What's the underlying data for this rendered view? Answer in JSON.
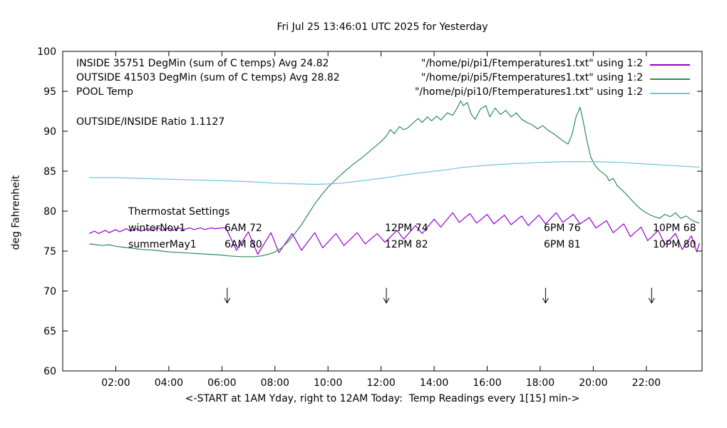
{
  "chart_data": {
    "type": "line",
    "title": "Fri Jul 25 13:46:01 UTC 2025 for Yesterday",
    "xlabel": "<-START at 1AM Yday, right to 12AM Today:  Temp Readings every 1[15] min->",
    "ylabel": "deg Fahrenheit",
    "xlim": [
      0,
      24.1
    ],
    "ylim": [
      60,
      100
    ],
    "grid": false,
    "legend_position": "top-inside",
    "xticks": {
      "values": [
        2,
        4,
        6,
        8,
        10,
        12,
        14,
        16,
        18,
        20,
        22
      ],
      "labels": [
        "02:00",
        "04:00",
        "06:00",
        "08:00",
        "10:00",
        "12:00",
        "14:00",
        "16:00",
        "18:00",
        "20:00",
        "22:00"
      ]
    },
    "yticks": [
      60,
      65,
      70,
      75,
      80,
      85,
      90,
      95,
      100
    ],
    "annotations": {
      "ratio": "OUTSIDE/INSIDE Ratio 1.1127"
    },
    "arrows": {
      "x_hours": [
        6.2,
        12.2,
        18.2,
        22.2
      ],
      "y_from": 70.4,
      "y_to": 68.5
    },
    "thermostat": {
      "heading": "Thermostat Settings",
      "rows": [
        {
          "label": "winterNov1",
          "values": [
            "6AM 72",
            "12PM 74",
            "6PM 76",
            "10PM 68"
          ]
        },
        {
          "label": "summerMay1",
          "values": [
            "6AM 80",
            "12PM 82",
            "6PM 81",
            "10PM 80"
          ]
        }
      ]
    },
    "series": [
      {
        "id": "inside",
        "legend_label": "INSIDE 35751 DegMin (sum of C temps) Avg 24.82",
        "file_label": "\"/home/pi/pi1/Ftemperatures1.txt\" using 1:2",
        "color": "#9400d3",
        "points": [
          [
            1,
            77.2
          ],
          [
            1.2,
            77.5
          ],
          [
            1.35,
            77.2
          ],
          [
            1.6,
            77.6
          ],
          [
            1.75,
            77.3
          ],
          [
            2,
            77.7
          ],
          [
            2.15,
            77.4
          ],
          [
            2.4,
            77.8
          ],
          [
            2.55,
            77.5
          ],
          [
            2.8,
            77.8
          ],
          [
            2.95,
            77.5
          ],
          [
            3.2,
            77.8
          ],
          [
            3.35,
            77.6
          ],
          [
            3.6,
            77.9
          ],
          [
            3.75,
            77.6
          ],
          [
            4,
            77.9
          ],
          [
            4.15,
            77.6
          ],
          [
            4.4,
            77.9
          ],
          [
            4.55,
            77.7
          ],
          [
            4.8,
            77.9
          ],
          [
            4.95,
            77.7
          ],
          [
            5.2,
            77.9
          ],
          [
            5.35,
            77.7
          ],
          [
            5.6,
            77.9
          ],
          [
            5.75,
            77.8
          ],
          [
            6,
            77.9
          ],
          [
            6.15,
            77.9
          ],
          [
            6.55,
            75.1
          ],
          [
            7,
            77.4
          ],
          [
            7.35,
            74.6
          ],
          [
            7.85,
            77.3
          ],
          [
            8.15,
            74.8
          ],
          [
            8.65,
            77.2
          ],
          [
            9,
            75.1
          ],
          [
            9.5,
            77.3
          ],
          [
            9.8,
            75.4
          ],
          [
            10.3,
            77.2
          ],
          [
            10.6,
            75.7
          ],
          [
            11.1,
            77.3
          ],
          [
            11.4,
            75.9
          ],
          [
            11.85,
            77.2
          ],
          [
            12.15,
            76.1
          ],
          [
            12.6,
            77.6
          ],
          [
            12.85,
            76.5
          ],
          [
            13.3,
            78.2
          ],
          [
            13.55,
            77.2
          ],
          [
            14,
            79
          ],
          [
            14.25,
            78
          ],
          [
            14.7,
            79.8
          ],
          [
            14.95,
            78.6
          ],
          [
            15.35,
            79.7
          ],
          [
            15.6,
            78.5
          ],
          [
            16,
            79.6
          ],
          [
            16.25,
            78.4
          ],
          [
            16.65,
            79.5
          ],
          [
            16.9,
            78.3
          ],
          [
            17.3,
            79.4
          ],
          [
            17.55,
            78.2
          ],
          [
            17.95,
            79.5
          ],
          [
            18.2,
            78.4
          ],
          [
            18.6,
            79.8
          ],
          [
            18.85,
            78.6
          ],
          [
            19.25,
            79.6
          ],
          [
            19.5,
            78.4
          ],
          [
            19.85,
            79.2
          ],
          [
            20.1,
            77.9
          ],
          [
            20.5,
            78.8
          ],
          [
            20.75,
            77.3
          ],
          [
            21.15,
            78.4
          ],
          [
            21.4,
            76.8
          ],
          [
            21.8,
            78
          ],
          [
            22.05,
            76.3
          ],
          [
            22.45,
            77.6
          ],
          [
            22.7,
            75.8
          ],
          [
            23.1,
            77.2
          ],
          [
            23.35,
            75.2
          ],
          [
            23.7,
            76.9
          ],
          [
            23.9,
            74.9
          ],
          [
            24,
            76
          ]
        ]
      },
      {
        "id": "outside",
        "legend_label": "OUTSIDE 41503 DegMin (sum of C temps) Avg 28.82",
        "file_label": "\"/home/pi/pi5/Ftemperatures1.txt\" using 1:2",
        "color": "#2e8b57",
        "points": [
          [
            1,
            75.9
          ],
          [
            1.25,
            75.8
          ],
          [
            1.5,
            75.7
          ],
          [
            1.75,
            75.8
          ],
          [
            2,
            75.6
          ],
          [
            2.25,
            75.5
          ],
          [
            2.5,
            75.4
          ],
          [
            2.75,
            75.3
          ],
          [
            3,
            75.2
          ],
          [
            3.25,
            75.15
          ],
          [
            3.5,
            75.1
          ],
          [
            3.75,
            75
          ],
          [
            4,
            74.9
          ],
          [
            4.25,
            74.85
          ],
          [
            4.5,
            74.8
          ],
          [
            4.75,
            74.75
          ],
          [
            5,
            74.7
          ],
          [
            5.25,
            74.65
          ],
          [
            5.5,
            74.6
          ],
          [
            5.75,
            74.55
          ],
          [
            6,
            74.5
          ],
          [
            6.25,
            74.4
          ],
          [
            6.5,
            74.35
          ],
          [
            6.75,
            74.3
          ],
          [
            7,
            74.3
          ],
          [
            7.25,
            74.3
          ],
          [
            7.5,
            74.4
          ],
          [
            7.75,
            74.6
          ],
          [
            8,
            74.9
          ],
          [
            8.25,
            75.4
          ],
          [
            8.5,
            76.2
          ],
          [
            8.75,
            77.2
          ],
          [
            9,
            78.3
          ],
          [
            9.25,
            79.6
          ],
          [
            9.5,
            80.9
          ],
          [
            9.75,
            82
          ],
          [
            10,
            83
          ],
          [
            10.25,
            83.8
          ],
          [
            10.5,
            84.6
          ],
          [
            10.75,
            85.3
          ],
          [
            11,
            86
          ],
          [
            11.25,
            86.6
          ],
          [
            11.5,
            87.3
          ],
          [
            11.75,
            88
          ],
          [
            12,
            88.7
          ],
          [
            12.2,
            89.4
          ],
          [
            12.35,
            90.2
          ],
          [
            12.5,
            89.7
          ],
          [
            12.7,
            90.6
          ],
          [
            12.85,
            90.2
          ],
          [
            13,
            90.4
          ],
          [
            13.2,
            91
          ],
          [
            13.4,
            91.6
          ],
          [
            13.55,
            91.1
          ],
          [
            13.75,
            91.8
          ],
          [
            13.9,
            91.3
          ],
          [
            14.1,
            91.9
          ],
          [
            14.25,
            91.4
          ],
          [
            14.5,
            92.3
          ],
          [
            14.7,
            92
          ],
          [
            14.85,
            92.8
          ],
          [
            15,
            93.8
          ],
          [
            15.1,
            93.2
          ],
          [
            15.25,
            93.6
          ],
          [
            15.4,
            92.1
          ],
          [
            15.55,
            91.5
          ],
          [
            15.75,
            92.8
          ],
          [
            15.95,
            93.2
          ],
          [
            16.1,
            91.8
          ],
          [
            16.3,
            92.9
          ],
          [
            16.5,
            92.1
          ],
          [
            16.7,
            92.6
          ],
          [
            16.9,
            91.8
          ],
          [
            17.1,
            92.3
          ],
          [
            17.3,
            91.5
          ],
          [
            17.5,
            91.1
          ],
          [
            17.7,
            90.8
          ],
          [
            17.9,
            90.3
          ],
          [
            18.1,
            90.7
          ],
          [
            18.3,
            90.1
          ],
          [
            18.5,
            89.7
          ],
          [
            18.7,
            89.2
          ],
          [
            18.9,
            88.7
          ],
          [
            19.05,
            88.4
          ],
          [
            19.2,
            89.6
          ],
          [
            19.35,
            91.8
          ],
          [
            19.5,
            93
          ],
          [
            19.6,
            91.6
          ],
          [
            19.75,
            89
          ],
          [
            19.9,
            86.8
          ],
          [
            20.05,
            85.8
          ],
          [
            20.2,
            85.2
          ],
          [
            20.35,
            84.8
          ],
          [
            20.5,
            84.4
          ],
          [
            20.6,
            83.8
          ],
          [
            20.75,
            84.1
          ],
          [
            20.9,
            83.2
          ],
          [
            21.1,
            82.6
          ],
          [
            21.3,
            81.9
          ],
          [
            21.5,
            81.2
          ],
          [
            21.7,
            80.5
          ],
          [
            21.9,
            80
          ],
          [
            22.1,
            79.6
          ],
          [
            22.3,
            79.3
          ],
          [
            22.5,
            79.1
          ],
          [
            22.7,
            79.6
          ],
          [
            22.9,
            79.3
          ],
          [
            23.1,
            79.8
          ],
          [
            23.3,
            79.1
          ],
          [
            23.5,
            79.4
          ],
          [
            23.7,
            78.9
          ],
          [
            23.9,
            78.6
          ],
          [
            24,
            78.5
          ]
        ]
      },
      {
        "id": "pool",
        "legend_label": "POOL Temp",
        "file_label": "\"/home/pi/pi10/Ftemperatures1.txt\" using 1:2",
        "color": "#6fc3de",
        "points": [
          [
            1,
            84.2
          ],
          [
            2,
            84.2
          ],
          [
            3,
            84.1
          ],
          [
            4,
            84
          ],
          [
            5,
            83.9
          ],
          [
            6,
            83.8
          ],
          [
            7,
            83.7
          ],
          [
            8,
            83.5
          ],
          [
            8.5,
            83.45
          ],
          [
            9,
            83.4
          ],
          [
            9.5,
            83.35
          ],
          [
            10,
            83.4
          ],
          [
            10.5,
            83.5
          ],
          [
            11,
            83.7
          ],
          [
            11.5,
            83.9
          ],
          [
            12,
            84.1
          ],
          [
            12.5,
            84.35
          ],
          [
            13,
            84.6
          ],
          [
            13.5,
            84.8
          ],
          [
            14,
            85
          ],
          [
            14.5,
            85.2
          ],
          [
            15,
            85.45
          ],
          [
            15.5,
            85.6
          ],
          [
            16,
            85.75
          ],
          [
            16.5,
            85.85
          ],
          [
            17,
            85.95
          ],
          [
            17.5,
            86
          ],
          [
            18,
            86.1
          ],
          [
            18.5,
            86.15
          ],
          [
            19,
            86.2
          ],
          [
            19.5,
            86.2
          ],
          [
            20,
            86.2
          ],
          [
            20.5,
            86.15
          ],
          [
            21,
            86.1
          ],
          [
            21.5,
            86
          ],
          [
            22,
            85.9
          ],
          [
            22.5,
            85.8
          ],
          [
            23,
            85.7
          ],
          [
            23.5,
            85.6
          ],
          [
            24,
            85.5
          ]
        ]
      }
    ]
  }
}
